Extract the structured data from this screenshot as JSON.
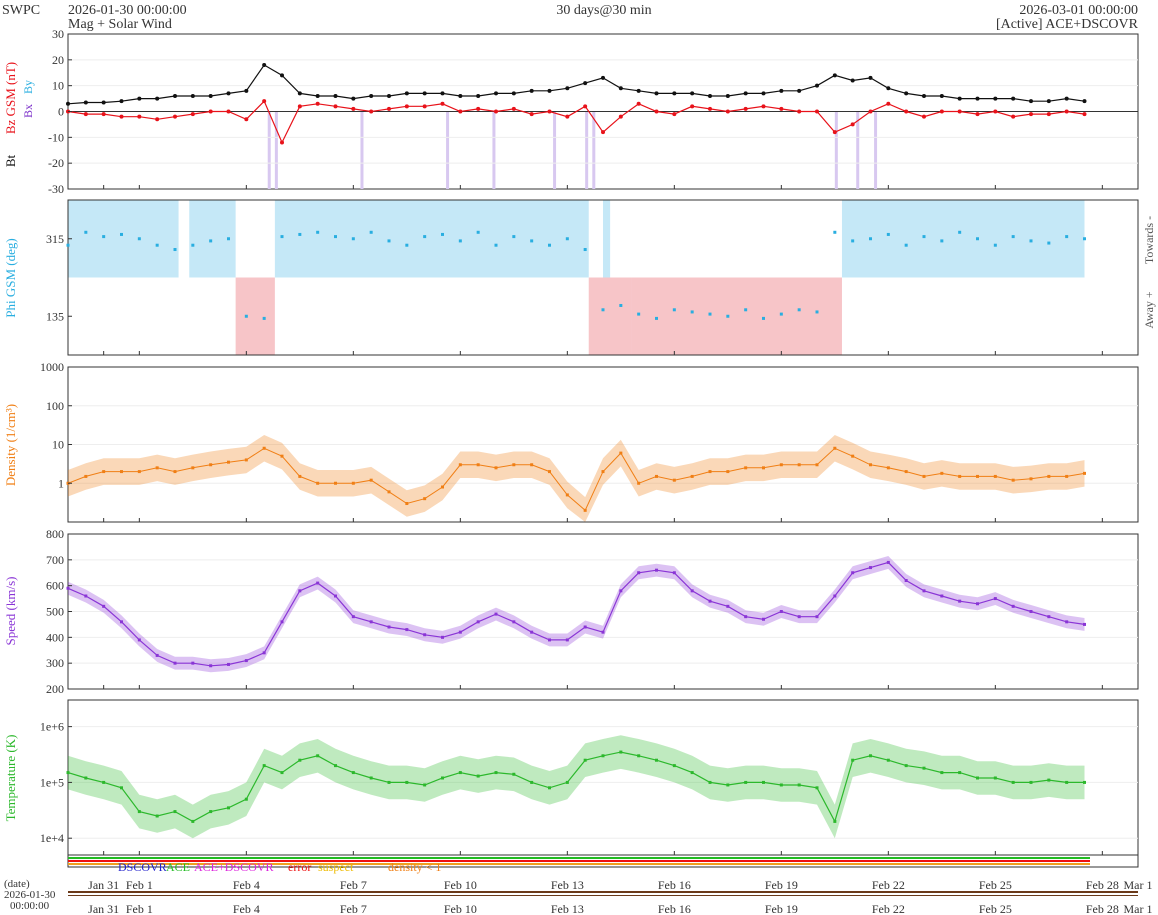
{
  "header": {
    "brand": "SWPC",
    "start": "2026-01-30 00:00:00",
    "subtitle": "Mag + Solar Wind",
    "span": "30 days@30 min",
    "end": "2026-03-01 00:00:00",
    "source": "[Active] ACE+DSCOVR"
  },
  "legend": {
    "dscovr": "DSCOVR",
    "ace": "ACE",
    "ace_dscovr": "ACE+DSCOVR",
    "error": "error",
    "suspect": "suspect",
    "density": "density < 1"
  },
  "footer": {
    "date_caption": "(date)",
    "start_date": "2026-01-30",
    "start_time": "00:00:00"
  },
  "colors": {
    "bt": "#111111",
    "bz": "#e8121a",
    "bx_by_label": "#7b2fc9",
    "by_label": "#29aee0",
    "phi": "#29aee0",
    "towards_band": "#c5e8f7",
    "away_band": "#f7c5c8",
    "density": "#f07f15",
    "speed": "#8a35d6",
    "temperature": "#2cb82c",
    "dscovr": "#2222cc",
    "ace": "#22bb22",
    "ace_dscovr": "#dd22dd",
    "error": "#ee1111",
    "suspect": "#eebb00"
  },
  "chart_data": [
    {
      "type": "line",
      "panel": "mag",
      "title": "Bt / Bz GSM",
      "ylabel_bt": "Bt",
      "ylabel_bz": "Bz GSM (nT)",
      "legend_bx": "Bx",
      "legend_by": "By",
      "ylim": [
        -30,
        30
      ],
      "yticks": [
        "30",
        "20",
        "10",
        "0",
        "-10",
        "-20",
        "-30"
      ],
      "x_unit": "days since 2026-01-30",
      "series": [
        {
          "name": "Bt",
          "x": [
            0,
            0.5,
            1,
            1.5,
            2,
            2.5,
            3,
            3.5,
            4,
            4.5,
            5,
            5.5,
            6,
            6.5,
            7,
            7.5,
            8,
            8.5,
            9,
            9.5,
            10,
            10.5,
            11,
            11.5,
            12,
            12.5,
            13,
            13.5,
            14,
            14.5,
            15,
            15.5,
            16,
            16.5,
            17,
            17.5,
            18,
            18.5,
            19,
            19.5,
            20,
            20.5,
            21,
            21.5,
            22,
            22.5,
            23,
            23.5,
            24,
            24.5,
            25,
            25.5,
            26,
            26.5,
            27,
            27.5,
            28,
            28.5
          ],
          "values": [
            3,
            3.5,
            3.5,
            4,
            5,
            5,
            6,
            6,
            6,
            7,
            8,
            18,
            14,
            7,
            6,
            6,
            5,
            6,
            6,
            7,
            7,
            7,
            6,
            6,
            7,
            7,
            8,
            8,
            9,
            11,
            13,
            9,
            8,
            7,
            7,
            7,
            6,
            6,
            7,
            7,
            8,
            8,
            10,
            14,
            12,
            13,
            9,
            7,
            6,
            6,
            5,
            5,
            5,
            5,
            4,
            4,
            5,
            4
          ]
        },
        {
          "name": "Bz",
          "x": [
            0,
            0.5,
            1,
            1.5,
            2,
            2.5,
            3,
            3.5,
            4,
            4.5,
            5,
            5.5,
            6,
            6.5,
            7,
            7.5,
            8,
            8.5,
            9,
            9.5,
            10,
            10.5,
            11,
            11.5,
            12,
            12.5,
            13,
            13.5,
            14,
            14.5,
            15,
            15.5,
            16,
            16.5,
            17,
            17.5,
            18,
            18.5,
            19,
            19.5,
            20,
            20.5,
            21,
            21.5,
            22,
            22.5,
            23,
            23.5,
            24,
            24.5,
            25,
            25.5,
            26,
            26.5,
            27,
            27.5,
            28,
            28.5
          ],
          "values": [
            0,
            -1,
            -1,
            -2,
            -2,
            -3,
            -2,
            -1,
            0,
            0,
            -3,
            4,
            -12,
            2,
            3,
            2,
            1,
            0,
            1,
            2,
            2,
            3,
            0,
            1,
            0,
            1,
            -1,
            0,
            -2,
            2,
            -8,
            -2,
            3,
            0,
            -1,
            2,
            1,
            0,
            1,
            2,
            1,
            0,
            0,
            -8,
            -5,
            0,
            3,
            0,
            -2,
            0,
            0,
            -1,
            0,
            -2,
            -1,
            -1,
            0,
            -1
          ]
        }
      ],
      "bx_negative_events": [
        5.6,
        5.8,
        8.2,
        10.6,
        11.9,
        13.6,
        14.5,
        14.7,
        21.5,
        22.1,
        22.6
      ]
    },
    {
      "type": "scatter",
      "panel": "phi",
      "ylabel": "Phi GSM (deg)",
      "right_top": "Towards -",
      "right_bottom": "Away +",
      "ylim": [
        45,
        405
      ],
      "yticks": [
        "315",
        "135"
      ],
      "towards_ranges": [
        [
          0,
          3.1
        ],
        [
          3.4,
          4.7
        ],
        [
          5.8,
          14.6
        ],
        [
          15.0,
          15.2
        ],
        [
          21.7,
          28.5
        ]
      ],
      "away_ranges": [
        [
          4.7,
          5.8
        ],
        [
          14.6,
          15.8
        ],
        [
          15.8,
          21.7
        ]
      ],
      "x": [
        0,
        0.5,
        1,
        1.5,
        2,
        2.5,
        3,
        3.5,
        4,
        4.5,
        5,
        5.5,
        6,
        6.5,
        7,
        7.5,
        8,
        8.5,
        9,
        9.5,
        10,
        10.5,
        11,
        11.5,
        12,
        12.5,
        13,
        13.5,
        14,
        14.5,
        15,
        15.5,
        16,
        16.5,
        17,
        17.5,
        18,
        18.5,
        19,
        19.5,
        20,
        20.5,
        21,
        21.5,
        22,
        22.5,
        23,
        23.5,
        24,
        24.5,
        25,
        25.5,
        26,
        26.5,
        27,
        27.5,
        28,
        28.5
      ],
      "values": [
        300,
        330,
        320,
        325,
        315,
        300,
        290,
        300,
        310,
        315,
        135,
        130,
        320,
        325,
        330,
        320,
        315,
        330,
        310,
        300,
        320,
        325,
        310,
        330,
        300,
        320,
        310,
        300,
        315,
        290,
        150,
        160,
        140,
        130,
        150,
        145,
        140,
        135,
        150,
        130,
        140,
        150,
        145,
        330,
        310,
        315,
        325,
        300,
        320,
        310,
        330,
        315,
        300,
        320,
        310,
        305,
        320,
        315
      ]
    },
    {
      "type": "scatter",
      "panel": "density",
      "ylabel": "Density (1/cm³)",
      "scale": "log",
      "ylim": [
        0.1,
        1000
      ],
      "yticks": [
        "1000",
        "100",
        "10",
        "1"
      ],
      "x": [
        0,
        0.5,
        1,
        1.5,
        2,
        2.5,
        3,
        3.5,
        4,
        4.5,
        5,
        5.5,
        6,
        6.5,
        7,
        7.5,
        8,
        8.5,
        9,
        9.5,
        10,
        10.5,
        11,
        11.5,
        12,
        12.5,
        13,
        13.5,
        14,
        14.5,
        15,
        15.5,
        16,
        16.5,
        17,
        17.5,
        18,
        18.5,
        19,
        19.5,
        20,
        20.5,
        21,
        21.5,
        22,
        22.5,
        23,
        23.5,
        24,
        24.5,
        25,
        25.5,
        26,
        26.5,
        27,
        27.5,
        28,
        28.5
      ],
      "values": [
        1,
        1.5,
        2,
        2,
        2,
        2.5,
        2,
        2.5,
        3,
        3.5,
        4,
        8,
        5,
        1.5,
        1,
        1,
        1,
        1.2,
        0.6,
        0.3,
        0.4,
        0.8,
        3,
        3,
        2.5,
        3,
        3,
        2,
        0.5,
        0.2,
        2,
        6,
        1,
        1.5,
        1.2,
        1.5,
        2,
        2,
        2.5,
        2.5,
        3,
        3,
        3,
        8,
        5,
        3,
        2.5,
        2,
        1.5,
        1.8,
        1.5,
        1.5,
        1.5,
        1.2,
        1.3,
        1.5,
        1.5,
        1.8
      ]
    },
    {
      "type": "scatter",
      "panel": "speed",
      "ylabel": "Speed (km/s)",
      "ylim": [
        200,
        800
      ],
      "yticks": [
        "800",
        "700",
        "600",
        "500",
        "400",
        "300",
        "200"
      ],
      "x": [
        0,
        0.5,
        1,
        1.5,
        2,
        2.5,
        3,
        3.5,
        4,
        4.5,
        5,
        5.5,
        6,
        6.5,
        7,
        7.5,
        8,
        8.5,
        9,
        9.5,
        10,
        10.5,
        11,
        11.5,
        12,
        12.5,
        13,
        13.5,
        14,
        14.5,
        15,
        15.5,
        16,
        16.5,
        17,
        17.5,
        18,
        18.5,
        19,
        19.5,
        20,
        20.5,
        21,
        21.5,
        22,
        22.5,
        23,
        23.5,
        24,
        24.5,
        25,
        25.5,
        26,
        26.5,
        27,
        27.5,
        28,
        28.5
      ],
      "values": [
        590,
        560,
        520,
        460,
        390,
        330,
        300,
        300,
        290,
        295,
        310,
        340,
        460,
        580,
        610,
        560,
        480,
        460,
        440,
        430,
        410,
        400,
        420,
        460,
        490,
        460,
        420,
        390,
        390,
        440,
        420,
        580,
        650,
        660,
        650,
        580,
        540,
        520,
        480,
        470,
        500,
        480,
        480,
        560,
        650,
        670,
        690,
        620,
        580,
        560,
        540,
        530,
        550,
        520,
        500,
        480,
        460,
        450
      ]
    },
    {
      "type": "scatter",
      "panel": "temperature",
      "ylabel": "Temperature (K)",
      "scale": "log",
      "ylim": [
        5000,
        3000000
      ],
      "yticks": [
        "1e+6",
        "1e+5",
        "1e+4"
      ],
      "x": [
        0,
        0.5,
        1,
        1.5,
        2,
        2.5,
        3,
        3.5,
        4,
        4.5,
        5,
        5.5,
        6,
        6.5,
        7,
        7.5,
        8,
        8.5,
        9,
        9.5,
        10,
        10.5,
        11,
        11.5,
        12,
        12.5,
        13,
        13.5,
        14,
        14.5,
        15,
        15.5,
        16,
        16.5,
        17,
        17.5,
        18,
        18.5,
        19,
        19.5,
        20,
        20.5,
        21,
        21.5,
        22,
        22.5,
        23,
        23.5,
        24,
        24.5,
        25,
        25.5,
        26,
        26.5,
        27,
        27.5,
        28,
        28.5
      ],
      "values": [
        150000,
        120000,
        100000,
        80000,
        30000,
        25000,
        30000,
        20000,
        30000,
        35000,
        50000,
        200000,
        150000,
        250000,
        300000,
        200000,
        150000,
        120000,
        100000,
        100000,
        90000,
        120000,
        150000,
        130000,
        150000,
        140000,
        100000,
        80000,
        100000,
        250000,
        300000,
        350000,
        300000,
        250000,
        200000,
        150000,
        100000,
        90000,
        100000,
        100000,
        90000,
        90000,
        80000,
        20000,
        250000,
        300000,
        250000,
        200000,
        180000,
        150000,
        150000,
        120000,
        120000,
        100000,
        100000,
        110000,
        100000,
        100000
      ]
    }
  ],
  "xaxis": {
    "ticks": [
      {
        "day": 1,
        "label": "Jan 31"
      },
      {
        "day": 2,
        "label": "Feb 1"
      },
      {
        "day": 5,
        "label": "Feb 4"
      },
      {
        "day": 8,
        "label": "Feb 7"
      },
      {
        "day": 11,
        "label": "Feb 10"
      },
      {
        "day": 14,
        "label": "Feb 13"
      },
      {
        "day": 17,
        "label": "Feb 16"
      },
      {
        "day": 20,
        "label": "Feb 19"
      },
      {
        "day": 23,
        "label": "Feb 22"
      },
      {
        "day": 26,
        "label": "Feb 25"
      },
      {
        "day": 29,
        "label": "Feb 28"
      },
      {
        "day": 30,
        "label": "Mar 1"
      }
    ]
  }
}
